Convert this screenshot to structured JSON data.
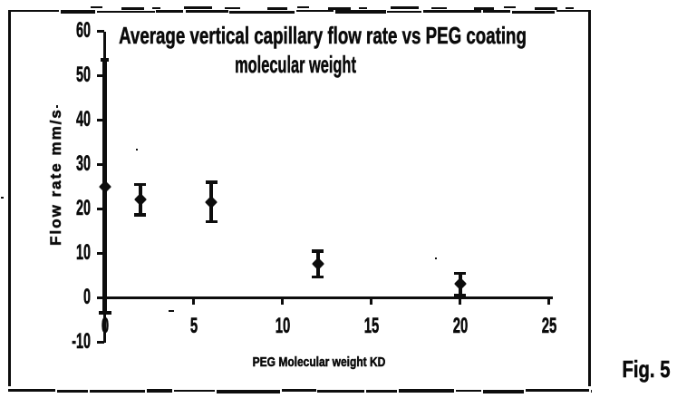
{
  "figure_label": "Fig. 5",
  "chart_data": {
    "type": "scatter",
    "title_line1": "Average vertical capillary flow rate vs PEG coating",
    "title_line2": "molecular weight",
    "xlabel": "PEG Molecular weight KD",
    "ylabel": "Flow rate mm/s",
    "xlim": [
      0,
      25
    ],
    "ylim": [
      -10,
      60
    ],
    "xticks": [
      0,
      5,
      10,
      15,
      20,
      25
    ],
    "yticks": [
      60,
      50,
      40,
      30,
      20,
      10,
      0,
      -10
    ],
    "grid": false,
    "error_bars": true,
    "marker": "diamond",
    "points": [
      {
        "x": 0,
        "y": 25,
        "err": 28.5
      },
      {
        "x": 2,
        "y": 22,
        "err": 3.5
      },
      {
        "x": 6,
        "y": 21.5,
        "err": 4.5
      },
      {
        "x": 12,
        "y": 7.5,
        "err": 3.0
      },
      {
        "x": 20,
        "y": 3,
        "err": 2.5
      }
    ]
  }
}
